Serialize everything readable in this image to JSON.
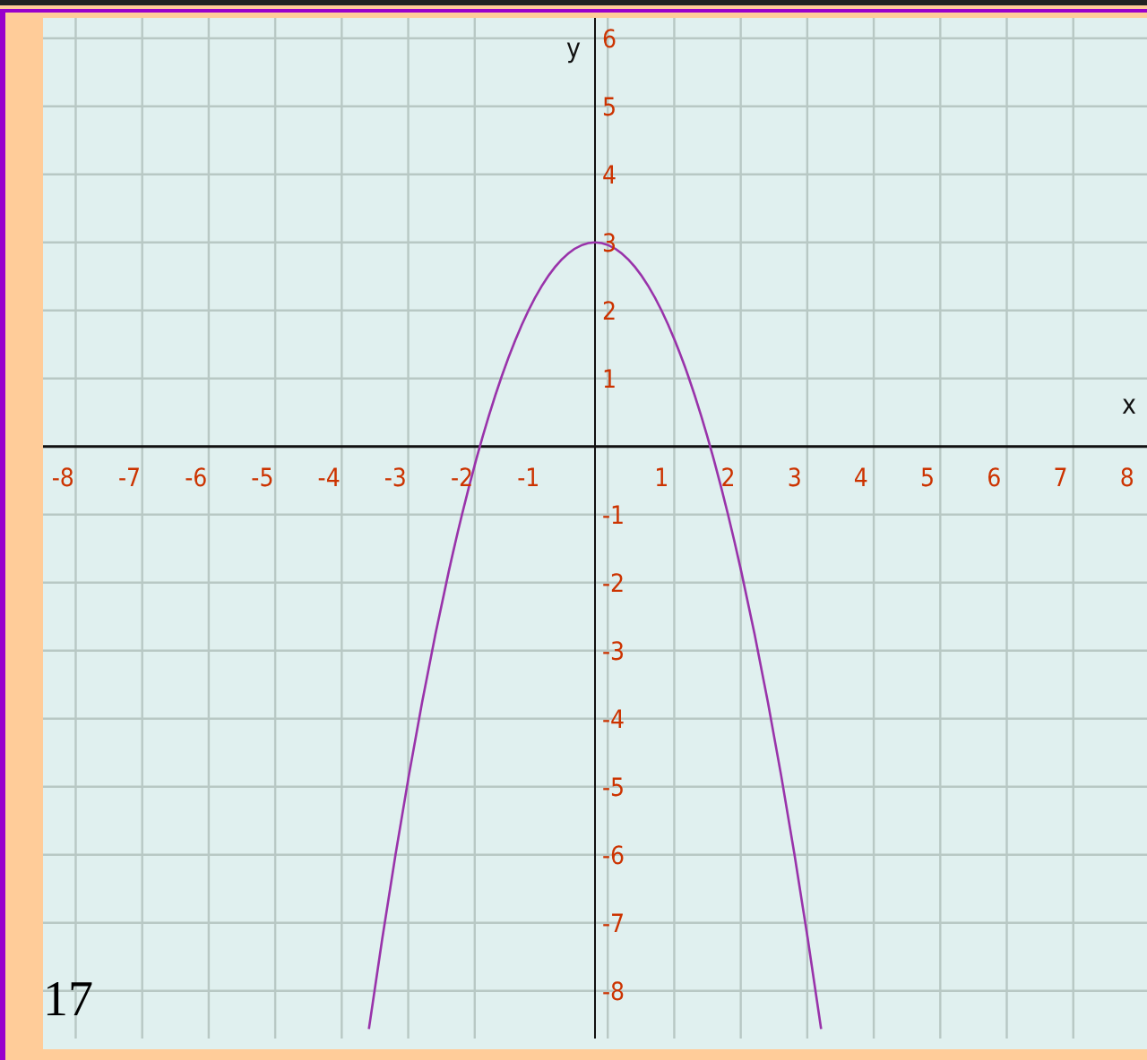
{
  "chart_data": {
    "type": "line",
    "xlabel": "x",
    "ylabel": "y",
    "annotations": [
      "17"
    ],
    "x": [
      -3.4,
      -3.2,
      -3.0,
      -2.8,
      -2.6,
      -2.4,
      -2.2,
      -2.0,
      -1.8,
      -1.6,
      -1.4,
      -1.2,
      -1.0,
      -0.8,
      -0.6,
      -0.4,
      -0.2,
      0,
      0.2,
      0.4,
      0.6,
      0.8,
      1.0,
      1.2,
      1.4,
      1.6,
      1.8,
      2.0,
      2.2,
      2.4,
      2.6,
      2.8,
      3.0,
      3.2,
      3.4
    ],
    "series": [
      {
        "color": "#9933aa",
        "values": [
          -8.56,
          -7.24,
          -6,
          -4.84,
          -3.76,
          -2.76,
          -1.84,
          -1,
          -0.24,
          0.44,
          1.04,
          1.56,
          2,
          2.36,
          2.64,
          2.84,
          2.96,
          3,
          2.96,
          2.84,
          2.64,
          2.36,
          2,
          1.56,
          1.04,
          0.44,
          -0.24,
          -1,
          -1.84,
          -2.76,
          -3.76,
          -4.84,
          -6,
          -7.24,
          -8.56
        ]
      }
    ],
    "xlim": [
      -8.3,
      8.3
    ],
    "ylim": [
      -8.7,
      6.3
    ],
    "xticks": [
      -8,
      -7,
      -6,
      -5,
      -4,
      -3,
      -2,
      -1,
      1,
      2,
      3,
      4,
      5,
      6,
      7,
      8
    ],
    "yticks": [
      -8,
      -7,
      -6,
      -5,
      -4,
      -3,
      -2,
      -1,
      1,
      2,
      3,
      4,
      5,
      6
    ],
    "grid": true,
    "marker": "none",
    "line_style": "solid"
  }
}
